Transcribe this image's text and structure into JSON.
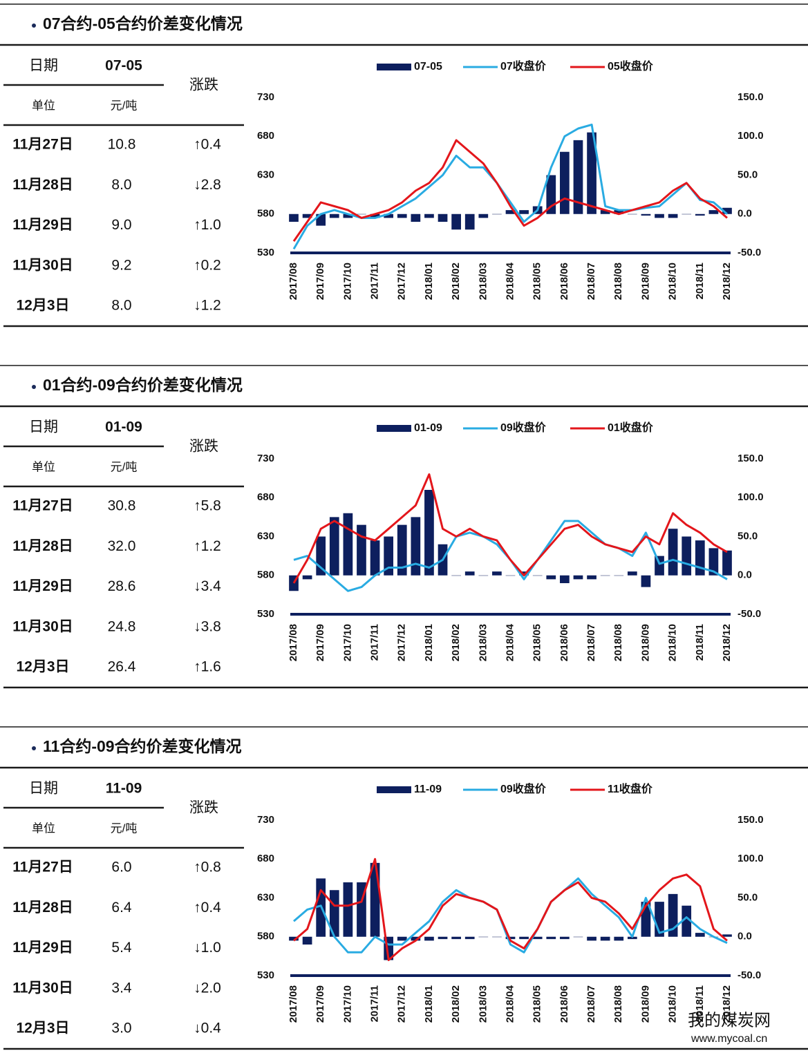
{
  "sections": [
    {
      "title": "07合约-05合约价差变化情况",
      "table": {
        "header": [
          "日期",
          "07-05",
          "涨跌"
        ],
        "units": [
          "单位",
          "元/吨"
        ],
        "rows": [
          [
            "11月27日",
            "10.8",
            "↑0.4"
          ],
          [
            "11月28日",
            "8.0",
            "↓2.8"
          ],
          [
            "11月29日",
            "9.0",
            "↑1.0"
          ],
          [
            "11月30日",
            "9.2",
            "↑0.2"
          ],
          [
            "12月3日",
            "8.0",
            "↓1.2"
          ]
        ]
      }
    },
    {
      "title": "01合约-09合约价差变化情况",
      "table": {
        "header": [
          "日期",
          "01-09",
          "涨跌"
        ],
        "units": [
          "单位",
          "元/吨"
        ],
        "rows": [
          [
            "11月27日",
            "30.8",
            "↑5.8"
          ],
          [
            "11月28日",
            "32.0",
            "↑1.2"
          ],
          [
            "11月29日",
            "28.6",
            "↓3.4"
          ],
          [
            "11月30日",
            "24.8",
            "↓3.8"
          ],
          [
            "12月3日",
            "26.4",
            "↑1.6"
          ]
        ]
      }
    },
    {
      "title": "11合约-09合约价差变化情况",
      "table": {
        "header": [
          "日期",
          "11-09",
          "涨跌"
        ],
        "units": [
          "单位",
          "元/吨"
        ],
        "rows": [
          [
            "11月27日",
            "6.0",
            "↑0.8"
          ],
          [
            "11月28日",
            "6.4",
            "↑0.4"
          ],
          [
            "11月29日",
            "5.4",
            "↓1.0"
          ],
          [
            "11月30日",
            "3.4",
            "↓2.0"
          ],
          [
            "12月3日",
            "3.0",
            "↓0.4"
          ]
        ]
      }
    }
  ],
  "watermark": {
    "name": "我的煤炭网",
    "url": "www.mycoal.cn"
  },
  "chart_data": [
    {
      "type": "combo",
      "categories": [
        "2017/08",
        null,
        "2017/09",
        null,
        "2017/10",
        null,
        "2017/11",
        null,
        "2017/12",
        null,
        "2018/01",
        null,
        "2018/02",
        null,
        "2018/03",
        null,
        "2018/04",
        null,
        "2018/05",
        null,
        "2018/06",
        null,
        "2018/07",
        null,
        "2018/08",
        null,
        "2018/09",
        null,
        "2018/10",
        null,
        "2018/11",
        null,
        "2018/12"
      ],
      "ylim": [
        530,
        730
      ],
      "yticks": [
        530,
        580,
        630,
        680,
        730
      ],
      "y2lim": [
        -50,
        150
      ],
      "y2ticks": [
        {
          "value": -50,
          "label": "-50.0"
        },
        {
          "value": 0,
          "label": "0.0"
        },
        {
          "value": 50,
          "label": "50.0"
        },
        {
          "value": 100,
          "label": "100.0"
        },
        {
          "value": 150,
          "label": "150.0"
        }
      ],
      "series": [
        {
          "name": "07-05",
          "kind": "bar",
          "axis": "y2",
          "color": "#0d1f5e",
          "values": [
            -10,
            -5,
            -15,
            -5,
            -5,
            0,
            -5,
            -5,
            -5,
            -10,
            -5,
            -10,
            -20,
            -20,
            -5,
            0,
            5,
            5,
            10,
            50,
            80,
            95,
            105,
            5,
            5,
            0,
            -2,
            -5,
            -5,
            0,
            -2,
            5,
            8
          ]
        },
        {
          "name": "07收盘价",
          "kind": "line",
          "color": "#29abe2",
          "values": [
            535,
            565,
            580,
            585,
            580,
            575,
            575,
            580,
            590,
            600,
            615,
            630,
            655,
            640,
            640,
            620,
            595,
            570,
            585,
            640,
            680,
            690,
            695,
            590,
            585,
            585,
            588,
            590,
            605,
            620,
            598,
            595,
            580
          ]
        },
        {
          "name": "05收盘价",
          "kind": "line",
          "color": "#e3161b",
          "values": [
            545,
            570,
            595,
            590,
            585,
            575,
            580,
            585,
            595,
            610,
            620,
            640,
            675,
            660,
            645,
            620,
            590,
            565,
            575,
            590,
            600,
            595,
            590,
            585,
            580,
            585,
            590,
            595,
            610,
            620,
            600,
            590,
            575
          ]
        }
      ]
    },
    {
      "type": "combo",
      "categories": [
        "2017/08",
        null,
        "2017/09",
        null,
        "2017/10",
        null,
        "2017/11",
        null,
        "2017/12",
        null,
        "2018/01",
        null,
        "2018/02",
        null,
        "2018/03",
        null,
        "2018/04",
        null,
        "2018/05",
        null,
        "2018/06",
        null,
        "2018/07",
        null,
        "2018/08",
        null,
        "2018/09",
        null,
        "2018/10",
        null,
        "2018/11",
        null,
        "2018/12"
      ],
      "ylim": [
        530,
        730
      ],
      "yticks": [
        530,
        580,
        630,
        680,
        730
      ],
      "y2lim": [
        -50,
        150
      ],
      "y2ticks": [
        {
          "value": -50,
          "label": "-50.0"
        },
        {
          "value": 0,
          "label": "0.0"
        },
        {
          "value": 50,
          "label": "50.0"
        },
        {
          "value": 100,
          "label": "100.0"
        },
        {
          "value": 150,
          "label": "150.0"
        }
      ],
      "series": [
        {
          "name": "01-09",
          "kind": "bar",
          "axis": "y2",
          "color": "#0d1f5e",
          "values": [
            -20,
            -5,
            50,
            75,
            80,
            65,
            45,
            50,
            65,
            75,
            110,
            40,
            0,
            5,
            0,
            5,
            0,
            5,
            0,
            -5,
            -10,
            -5,
            -5,
            0,
            0,
            5,
            -15,
            25,
            60,
            50,
            45,
            35,
            32
          ]
        },
        {
          "name": "09收盘价",
          "kind": "line",
          "color": "#29abe2",
          "values": [
            600,
            605,
            590,
            575,
            560,
            565,
            580,
            590,
            590,
            595,
            590,
            600,
            630,
            635,
            630,
            620,
            600,
            575,
            600,
            625,
            650,
            650,
            635,
            620,
            615,
            605,
            635,
            595,
            600,
            595,
            590,
            585,
            575
          ]
        },
        {
          "name": "01收盘价",
          "kind": "line",
          "color": "#e3161b",
          "values": [
            570,
            600,
            640,
            650,
            640,
            630,
            625,
            640,
            655,
            670,
            710,
            640,
            630,
            640,
            630,
            625,
            600,
            580,
            600,
            620,
            640,
            645,
            630,
            620,
            615,
            610,
            630,
            620,
            660,
            645,
            635,
            620,
            610
          ]
        }
      ]
    },
    {
      "type": "combo",
      "categories": [
        "2017/08",
        null,
        "2017/09",
        null,
        "2017/10",
        null,
        "2017/11",
        null,
        "2017/12",
        null,
        "2018/01",
        null,
        "2018/02",
        null,
        "2018/03",
        null,
        "2018/04",
        null,
        "2018/05",
        null,
        "2018/06",
        null,
        "2018/07",
        null,
        "2018/08",
        null,
        "2018/09",
        null,
        "2018/10",
        null,
        "2018/11",
        null,
        "2018/12"
      ],
      "ylim": [
        530,
        730
      ],
      "yticks": [
        530,
        580,
        630,
        680,
        730
      ],
      "y2lim": [
        -50,
        150
      ],
      "y2ticks": [
        {
          "value": -50,
          "label": "-50.0"
        },
        {
          "value": 0,
          "label": "0.0"
        },
        {
          "value": 50,
          "label": "50.0"
        },
        {
          "value": 100,
          "label": "100.0"
        },
        {
          "value": 150,
          "label": "150.0"
        }
      ],
      "series": [
        {
          "name": "11-09",
          "kind": "bar",
          "axis": "y2",
          "color": "#0d1f5e",
          "values": [
            -5,
            -10,
            75,
            60,
            70,
            70,
            95,
            -30,
            -5,
            -5,
            -5,
            -3,
            -3,
            -3,
            0,
            0,
            -3,
            -3,
            -3,
            -3,
            -3,
            0,
            -5,
            -5,
            -5,
            -3,
            45,
            45,
            55,
            40,
            5,
            0,
            3
          ]
        },
        {
          "name": "09收盘价",
          "kind": "line",
          "color": "#29abe2",
          "values": [
            600,
            615,
            620,
            580,
            560,
            560,
            580,
            570,
            570,
            585,
            600,
            625,
            640,
            630,
            625,
            615,
            570,
            560,
            590,
            625,
            640,
            655,
            635,
            620,
            605,
            580,
            630,
            585,
            590,
            605,
            590,
            580,
            572
          ]
        },
        {
          "name": "11收盘价",
          "kind": "line",
          "color": "#e3161b",
          "values": [
            575,
            590,
            640,
            620,
            620,
            625,
            680,
            550,
            565,
            575,
            590,
            620,
            635,
            630,
            625,
            615,
            575,
            565,
            590,
            625,
            640,
            650,
            630,
            625,
            610,
            590,
            620,
            640,
            655,
            660,
            645,
            590,
            575
          ]
        }
      ]
    }
  ]
}
